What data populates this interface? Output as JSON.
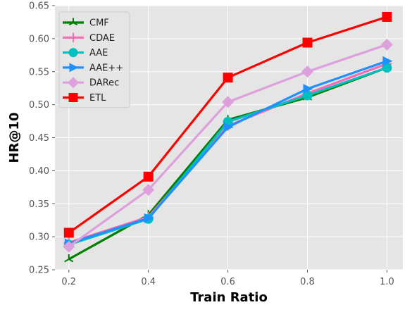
{
  "chart_data": {
    "type": "line",
    "title": "",
    "xlabel": "Train Ratio",
    "ylabel": "HR@10",
    "x": [
      0.2,
      0.4,
      0.6,
      0.8,
      1.0
    ],
    "x_tick_labels": [
      "0.2",
      "0.4",
      "0.6",
      "0.8",
      "1.0"
    ],
    "y_tick_labels": [
      "0.25",
      "0.30",
      "0.35",
      "0.40",
      "0.45",
      "0.50",
      "0.55",
      "0.60",
      "0.65"
    ],
    "xlim": [
      0.165,
      1.04
    ],
    "ylim": [
      0.25,
      0.65
    ],
    "grid": true,
    "legend_position": "top-left",
    "series": [
      {
        "name": "CMF",
        "color": "#008000",
        "marker": "tri-star",
        "values": [
          0.266,
          0.333,
          0.477,
          0.511,
          0.556
        ]
      },
      {
        "name": "CDAE",
        "color": "#ff69b4",
        "marker": "plus",
        "values": [
          0.291,
          0.33,
          0.468,
          0.517,
          0.562
        ]
      },
      {
        "name": "AAE",
        "color": "#00bfbf",
        "marker": "circle",
        "values": [
          0.288,
          0.327,
          0.474,
          0.514,
          0.556
        ]
      },
      {
        "name": "AAE++",
        "color": "#1e90ff",
        "marker": "triangle-right",
        "values": [
          0.29,
          0.328,
          0.466,
          0.524,
          0.566
        ]
      },
      {
        "name": "DARec",
        "color": "#dda0dd",
        "marker": "diamond",
        "values": [
          0.285,
          0.371,
          0.504,
          0.55,
          0.591
        ]
      },
      {
        "name": "ETL",
        "color": "#ff0000",
        "marker": "square",
        "values": [
          0.306,
          0.391,
          0.541,
          0.594,
          0.633
        ]
      }
    ]
  }
}
